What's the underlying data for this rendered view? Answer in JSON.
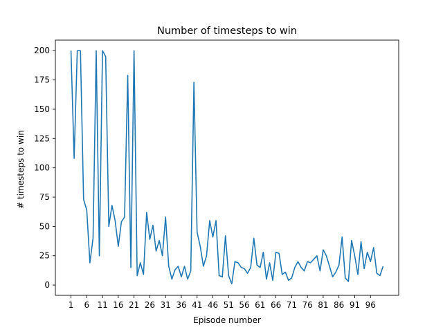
{
  "chart_data": {
    "type": "line",
    "title": "Number of timesteps to win",
    "xlabel": "Episode number",
    "ylabel": "# timesteps to win",
    "xlim": [
      -3.95,
      104.95
    ],
    "ylim": [
      -8.8,
      209
    ],
    "x_ticks": [
      1,
      6,
      11,
      16,
      21,
      26,
      31,
      36,
      41,
      46,
      51,
      56,
      61,
      66,
      71,
      76,
      81,
      86,
      91,
      96
    ],
    "y_ticks": [
      0,
      25,
      50,
      75,
      100,
      125,
      150,
      175,
      200
    ],
    "grid": false,
    "legend": "none",
    "series": [
      {
        "color": "#1f77b4",
        "x": [
          1,
          2,
          3,
          4,
          5,
          6,
          7,
          8,
          9,
          10,
          11,
          12,
          13,
          14,
          15,
          16,
          17,
          18,
          19,
          20,
          21,
          22,
          23,
          24,
          25,
          26,
          27,
          28,
          29,
          30,
          31,
          32,
          33,
          34,
          35,
          36,
          37,
          38,
          39,
          40,
          41,
          42,
          43,
          44,
          45,
          46,
          47,
          48,
          49,
          50,
          51,
          52,
          53,
          54,
          55,
          56,
          57,
          58,
          59,
          60,
          61,
          62,
          63,
          64,
          65,
          66,
          67,
          68,
          69,
          70,
          71,
          72,
          73,
          74,
          75,
          76,
          77,
          78,
          79,
          80,
          81,
          82,
          83,
          84,
          85,
          86,
          87,
          88,
          89,
          90,
          91,
          92,
          93,
          94,
          95,
          96,
          97,
          98,
          99,
          100
        ],
        "y": [
          200,
          108,
          200,
          200,
          73,
          64,
          19,
          40,
          200,
          25,
          200,
          195,
          50,
          68,
          55,
          33,
          54,
          58,
          179,
          15,
          200,
          8,
          19,
          9,
          62,
          39,
          51,
          29,
          38,
          25,
          58,
          16,
          5,
          13,
          16,
          7,
          16,
          5,
          12,
          173,
          45,
          33,
          16,
          25,
          55,
          41,
          55,
          8,
          7,
          42,
          8,
          1,
          20,
          19,
          15,
          14,
          10,
          15,
          40,
          17,
          15,
          28,
          5,
          19,
          4,
          28,
          27,
          9,
          11,
          4,
          6,
          15,
          20,
          15,
          12,
          20,
          19,
          22,
          25,
          12,
          30,
          25,
          16,
          7,
          11,
          17,
          41,
          6,
          3,
          38,
          25,
          9,
          37,
          14,
          28,
          20,
          32,
          10,
          8,
          16
        ]
      }
    ]
  }
}
